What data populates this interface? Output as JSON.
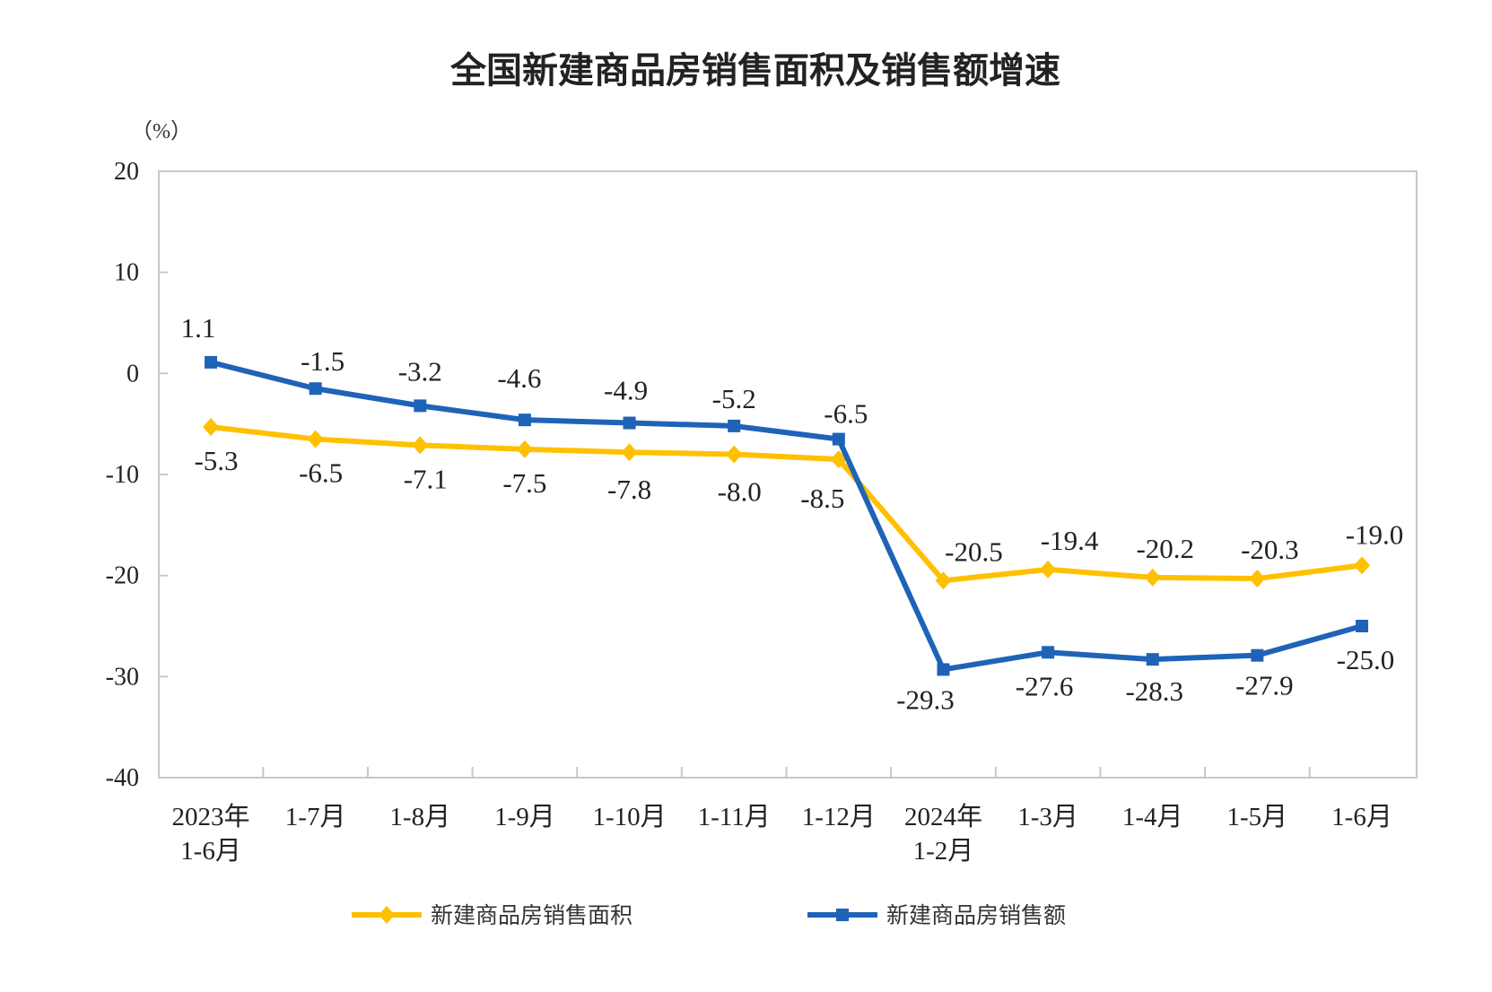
{
  "chart_data": {
    "type": "line",
    "title": "全国新建商品房销售面积及销售额增速",
    "ylabel": "（%）",
    "xlabel": "",
    "ylim": [
      -40,
      20
    ],
    "yticks": [
      20,
      10,
      0,
      -10,
      -20,
      -30,
      -40
    ],
    "grid": false,
    "legend_position": "bottom",
    "categories": [
      [
        "2023年",
        "1-6月"
      ],
      [
        "1-7月"
      ],
      [
        "1-8月"
      ],
      [
        "1-9月"
      ],
      [
        "1-10月"
      ],
      [
        "1-11月"
      ],
      [
        "1-12月"
      ],
      [
        "2024年",
        "1-2月"
      ],
      [
        "1-3月"
      ],
      [
        "1-4月"
      ],
      [
        "1-5月"
      ],
      [
        "1-6月"
      ]
    ],
    "series": [
      {
        "name": "新建商品房销售面积",
        "color": "#FFC000",
        "marker": "diamond",
        "values": [
          -5.3,
          -6.5,
          -7.1,
          -7.5,
          -7.8,
          -8.0,
          -8.5,
          -20.5,
          -19.4,
          -20.2,
          -20.3,
          -19.0
        ],
        "labels": [
          "-5.3",
          "-6.5",
          "-7.1",
          "-7.5",
          "-7.8",
          "-8.0",
          "-8.5",
          "-20.5",
          "-19.4",
          "-20.2",
          "-20.3",
          "-19.0"
        ]
      },
      {
        "name": "新建商品房销售额",
        "color": "#1F63B8",
        "marker": "square",
        "values": [
          1.1,
          -1.5,
          -3.2,
          -4.6,
          -4.9,
          -5.2,
          -6.5,
          -29.3,
          -27.6,
          -28.3,
          -27.9,
          -25.0
        ],
        "labels": [
          "1.1",
          "-1.5",
          "-3.2",
          "-4.6",
          "-4.9",
          "-5.2",
          "-6.5",
          "-29.3",
          "-27.6",
          "-28.3",
          "-27.9",
          "-25.0"
        ]
      }
    ]
  }
}
